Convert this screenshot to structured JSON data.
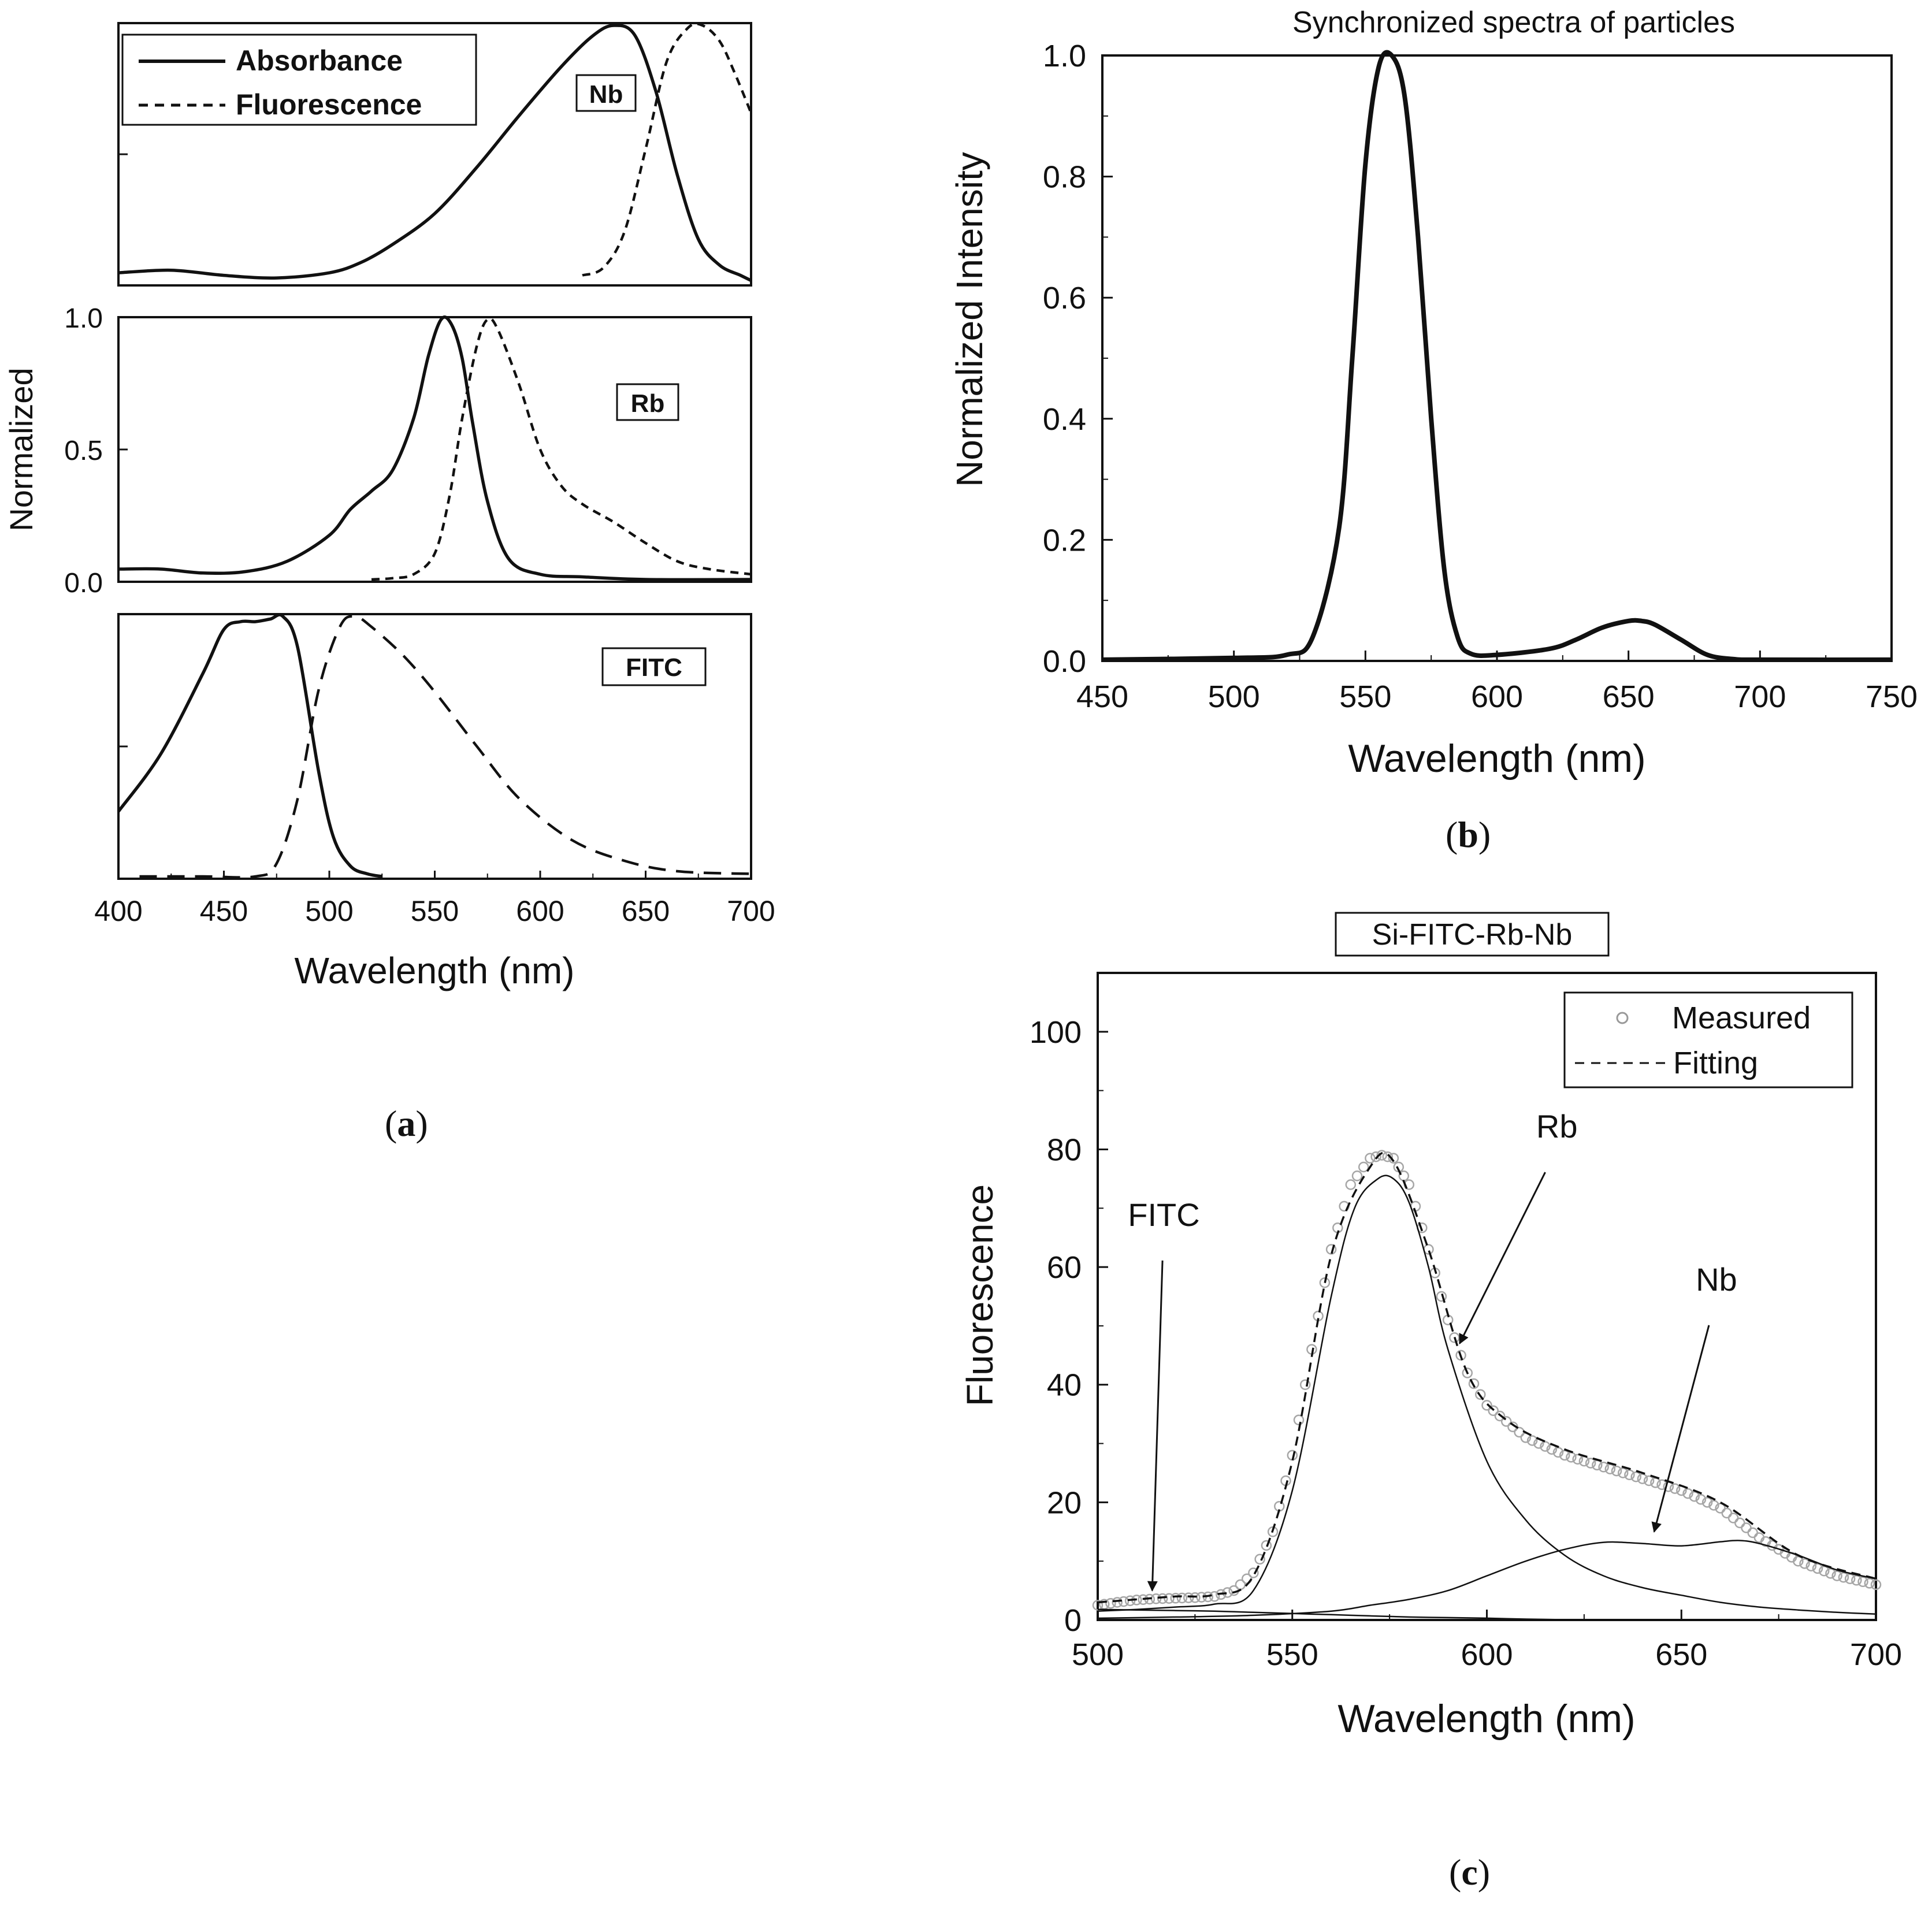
{
  "captions": [
    {
      "open": "(",
      "letter": "a",
      "close": ")"
    },
    {
      "open": "(",
      "letter": "b",
      "close": ")"
    },
    {
      "open": "(",
      "letter": "c",
      "close": ")"
    }
  ],
  "chart_data": [
    {
      "id": "a",
      "type": "line",
      "title": "",
      "xlabel": "Wavelength (nm)",
      "ylabel": "Normalized",
      "xlim": [
        400,
        700
      ],
      "xticks": [
        "400",
        "450",
        "500",
        "550",
        "600",
        "650",
        "700"
      ],
      "legend": {
        "placement": "top-left",
        "entries": [
          {
            "label": "Absorbance",
            "style": "solid"
          },
          {
            "label": "Fluorescence",
            "style": "dashed"
          }
        ]
      },
      "panels": [
        {
          "label": "Nb",
          "ylim": [
            0,
            1
          ],
          "yticks": [],
          "series": [
            {
              "name": "Absorbance",
              "style": "solid",
              "x": [
                400,
                425,
                450,
                475,
                500,
                515,
                530,
                550,
                570,
                590,
                610,
                625,
                635,
                645,
                655,
                665,
                675,
                685,
                695,
                700
              ],
              "y": [
                0.04,
                0.05,
                0.03,
                0.02,
                0.04,
                0.08,
                0.15,
                0.27,
                0.45,
                0.65,
                0.84,
                0.96,
                1.0,
                0.96,
                0.74,
                0.42,
                0.17,
                0.07,
                0.03,
                0.01
              ]
            },
            {
              "name": "Fluorescence",
              "style": "dashed",
              "x": [
                620,
                630,
                640,
                650,
                660,
                670,
                677,
                685,
                692,
                700
              ],
              "y": [
                0.03,
                0.06,
                0.2,
                0.52,
                0.86,
                0.99,
                1.0,
                0.94,
                0.82,
                0.66
              ]
            }
          ]
        },
        {
          "label": "Rb",
          "ylim": [
            0,
            1
          ],
          "yticks": [
            "0.0",
            "0.5",
            "1.0"
          ],
          "series": [
            {
              "name": "Absorbance",
              "style": "solid",
              "x": [
                400,
                420,
                440,
                460,
                480,
                500,
                510,
                520,
                530,
                540,
                547,
                553,
                558,
                563,
                568,
                575,
                585,
                600,
                620,
                650,
                700
              ],
              "y": [
                0.04,
                0.04,
                0.025,
                0.03,
                0.07,
                0.17,
                0.27,
                0.34,
                0.42,
                0.62,
                0.86,
                1.0,
                0.98,
                0.85,
                0.6,
                0.3,
                0.08,
                0.02,
                0.01,
                0.0,
                0.0
              ]
            },
            {
              "name": "Fluorescence",
              "style": "dashed",
              "x": [
                520,
                530,
                540,
                550,
                557,
                563,
                570,
                575,
                580,
                590,
                600,
                610,
                620,
                635,
                650,
                665,
                680,
                700
              ],
              "y": [
                0.0,
                0.005,
                0.02,
                0.1,
                0.32,
                0.62,
                0.9,
                1.0,
                0.96,
                0.75,
                0.5,
                0.36,
                0.29,
                0.22,
                0.14,
                0.07,
                0.04,
                0.02
              ]
            }
          ]
        },
        {
          "label": "FITC",
          "ylim": [
            0,
            1
          ],
          "yticks": [],
          "series": [
            {
              "name": "Absorbance",
              "style": "solid",
              "x": [
                400,
                420,
                440,
                450,
                458,
                465,
                472,
                478,
                485,
                495,
                502,
                510,
                518,
                525
              ],
              "y": [
                0.25,
                0.47,
                0.78,
                0.95,
                0.98,
                0.98,
                0.99,
                1.0,
                0.88,
                0.4,
                0.15,
                0.04,
                0.01,
                0.0
              ]
            },
            {
              "name": "Fluorescence",
              "style": "dashed",
              "x": [
                410,
                440,
                465,
                475,
                485,
                495,
                505,
                512,
                520,
                535,
                550,
                570,
                590,
                615,
                640,
                665,
                700
              ],
              "y": [
                0.0,
                0.0,
                0.0,
                0.05,
                0.3,
                0.72,
                0.96,
                1.0,
                0.96,
                0.85,
                0.71,
                0.5,
                0.3,
                0.14,
                0.06,
                0.02,
                0.01
              ]
            }
          ]
        }
      ]
    },
    {
      "id": "b",
      "type": "line",
      "title": "Synchronized spectra of particles",
      "xlabel": "Wavelength (nm)",
      "ylabel": "Normalized Intensity",
      "xlim": [
        450,
        750
      ],
      "ylim": [
        0,
        1.0
      ],
      "xticks": [
        "450",
        "500",
        "550",
        "600",
        "650",
        "700",
        "750"
      ],
      "yticks": [
        "0.0",
        "0.2",
        "0.4",
        "0.6",
        "0.8",
        "1.0"
      ],
      "series": [
        {
          "name": "Synchronized spectrum",
          "style": "solid",
          "x": [
            450,
            500,
            520,
            530,
            540,
            545,
            550,
            555,
            560,
            565,
            570,
            575,
            580,
            585,
            590,
            600,
            620,
            630,
            640,
            650,
            655,
            660,
            670,
            680,
            690,
            700,
            750
          ],
          "y": [
            0.002,
            0.005,
            0.01,
            0.04,
            0.22,
            0.5,
            0.82,
            0.98,
            1.0,
            0.93,
            0.7,
            0.4,
            0.15,
            0.04,
            0.012,
            0.01,
            0.02,
            0.035,
            0.055,
            0.066,
            0.066,
            0.06,
            0.035,
            0.01,
            0.003,
            0.002,
            0.002
          ]
        }
      ]
    },
    {
      "id": "c",
      "type": "line",
      "title": "Si-FITC-Rb-Nb",
      "xlabel": "Wavelength (nm)",
      "ylabel": "Fluorescence",
      "xlim": [
        500,
        700
      ],
      "ylim": [
        0,
        110
      ],
      "xticks": [
        "500",
        "550",
        "600",
        "650",
        "700"
      ],
      "yticks": [
        "0",
        "20",
        "40",
        "60",
        "80",
        "100"
      ],
      "legend": {
        "placement": "top-right",
        "entries": [
          {
            "label": "Measured",
            "style": "circle"
          },
          {
            "label": "Fitting",
            "style": "dashed"
          }
        ]
      },
      "annotations": [
        {
          "text": "FITC",
          "x": 517,
          "y": 67,
          "arrow_to": [
            514,
            5
          ]
        },
        {
          "text": "Rb",
          "x": 618,
          "y": 82,
          "arrow_to": [
            593,
            47
          ]
        },
        {
          "text": "Nb",
          "x": 659,
          "y": 56,
          "arrow_to": [
            643,
            15
          ]
        }
      ],
      "series": [
        {
          "name": "Measured",
          "style": "circle",
          "x": [
            500,
            505,
            510,
            515,
            520,
            525,
            530,
            535,
            540,
            545,
            550,
            555,
            560,
            565,
            570,
            573,
            576,
            580,
            585,
            590,
            595,
            600,
            610,
            620,
            630,
            640,
            650,
            660,
            670,
            680,
            690,
            700
          ],
          "y": [
            2.5,
            3.0,
            3.4,
            3.6,
            3.7,
            3.8,
            4.0,
            5.0,
            8.0,
            15.0,
            28.0,
            46.0,
            63.0,
            74.0,
            78.5,
            79.0,
            78.5,
            74.0,
            63.0,
            51.0,
            42.0,
            36.5,
            31.0,
            28.0,
            26.0,
            24.0,
            22.0,
            19.0,
            14.0,
            10.0,
            7.5,
            6.0
          ]
        },
        {
          "name": "Fitting",
          "style": "dashed",
          "x": [
            500,
            510,
            520,
            530,
            540,
            550,
            560,
            570,
            576,
            585,
            595,
            605,
            620,
            640,
            660,
            680,
            700
          ],
          "y": [
            3.0,
            3.5,
            4.0,
            4.3,
            7.5,
            27.0,
            62.0,
            77.0,
            78.0,
            63.0,
            42.0,
            34.0,
            29.0,
            25.0,
            20.0,
            11.0,
            7.0
          ]
        },
        {
          "name": "Rb",
          "style": "thin",
          "x": [
            500,
            510,
            520,
            530,
            540,
            550,
            560,
            566,
            572,
            576,
            580,
            585,
            590,
            600,
            610,
            620,
            630,
            640,
            650,
            660,
            670,
            680,
            690,
            700
          ],
          "y": [
            1.5,
            1.8,
            2.2,
            2.7,
            5.0,
            22.0,
            55.0,
            70.0,
            75.0,
            75.0,
            71.0,
            60.0,
            46.0,
            27.0,
            17.0,
            11.0,
            7.5,
            5.5,
            4.2,
            3.0,
            2.2,
            1.7,
            1.3,
            1.0
          ]
        },
        {
          "name": "Nb",
          "style": "thin",
          "x": [
            500,
            520,
            540,
            560,
            570,
            580,
            590,
            600,
            610,
            620,
            630,
            640,
            650,
            660,
            665,
            670,
            680,
            690,
            700
          ],
          "y": [
            0.3,
            0.5,
            0.8,
            1.5,
            2.5,
            3.5,
            5.0,
            7.5,
            10.0,
            12.0,
            13.2,
            13.0,
            12.6,
            13.3,
            13.5,
            13.0,
            11.0,
            8.5,
            7.0
          ]
        },
        {
          "name": "FITC",
          "style": "thin",
          "x": [
            500,
            510,
            520,
            530,
            540,
            550,
            560,
            570,
            580,
            590,
            600,
            610,
            620
          ],
          "y": [
            1.8,
            1.7,
            1.6,
            1.5,
            1.3,
            1.1,
            0.9,
            0.7,
            0.5,
            0.4,
            0.3,
            0.15,
            0.05
          ]
        }
      ]
    }
  ]
}
